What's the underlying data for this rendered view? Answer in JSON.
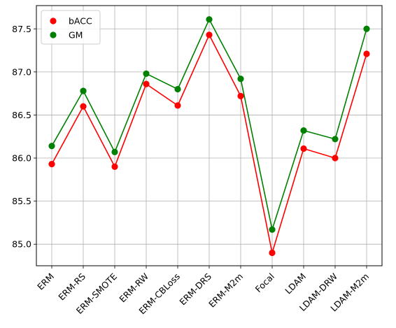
{
  "chart_data": {
    "type": "line",
    "categories": [
      "ERM",
      "ERM-RS",
      "ERM-SMOTE",
      "ERM-RW",
      "ERM-CBLoss",
      "ERM-DRS",
      "ERM-M2m",
      "Focal",
      "LDAM",
      "LDAM-DRW",
      "LDAM-M2m"
    ],
    "series": [
      {
        "name": "bACC",
        "color": "#ff0000",
        "values": [
          85.93,
          86.6,
          85.9,
          86.86,
          86.61,
          87.43,
          86.72,
          84.9,
          86.11,
          86.0,
          87.21
        ]
      },
      {
        "name": "GM",
        "color": "#008000",
        "values": [
          86.14,
          86.78,
          86.07,
          86.98,
          86.8,
          87.61,
          86.92,
          85.17,
          86.32,
          86.22,
          87.5
        ]
      }
    ],
    "ylim": [
      84.75,
      87.77
    ],
    "yticks": [
      "85.0",
      "85.5",
      "86.0",
      "86.5",
      "87.0",
      "87.5"
    ],
    "ytick_values": [
      85.0,
      85.5,
      86.0,
      86.5,
      87.0,
      87.5
    ],
    "grid": true,
    "legend": "top-left",
    "markers": "scatter points overlaid on lines",
    "xtick_rotation": "45 degrees"
  }
}
